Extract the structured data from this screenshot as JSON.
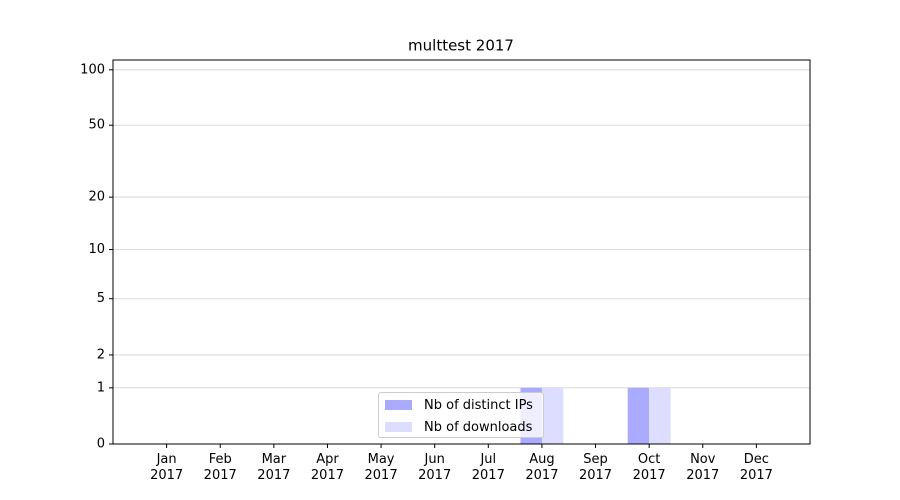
{
  "chart_data": {
    "type": "bar",
    "title": "multtest 2017",
    "categories": [
      "Jan\n2017",
      "Feb\n2017",
      "Mar\n2017",
      "Apr\n2017",
      "May\n2017",
      "Jun\n2017",
      "Jul\n2017",
      "Aug\n2017",
      "Sep\n2017",
      "Oct\n2017",
      "Nov\n2017",
      "Dec\n2017"
    ],
    "series": [
      {
        "name": "Nb of distinct IPs",
        "color": "#aaaaff",
        "values": [
          0,
          0,
          0,
          0,
          0,
          0,
          0,
          1,
          0,
          1,
          0,
          0
        ]
      },
      {
        "name": "Nb of downloads",
        "color": "#ddddff",
        "values": [
          0,
          0,
          0,
          0,
          0,
          0,
          0,
          1,
          0,
          1,
          0,
          0
        ]
      }
    ],
    "ylim": [
      0,
      113
    ],
    "yticks": [
      0,
      1,
      2,
      5,
      10,
      20,
      50,
      100
    ],
    "yscale": "log1p",
    "grid": true,
    "legend": "lower center"
  }
}
